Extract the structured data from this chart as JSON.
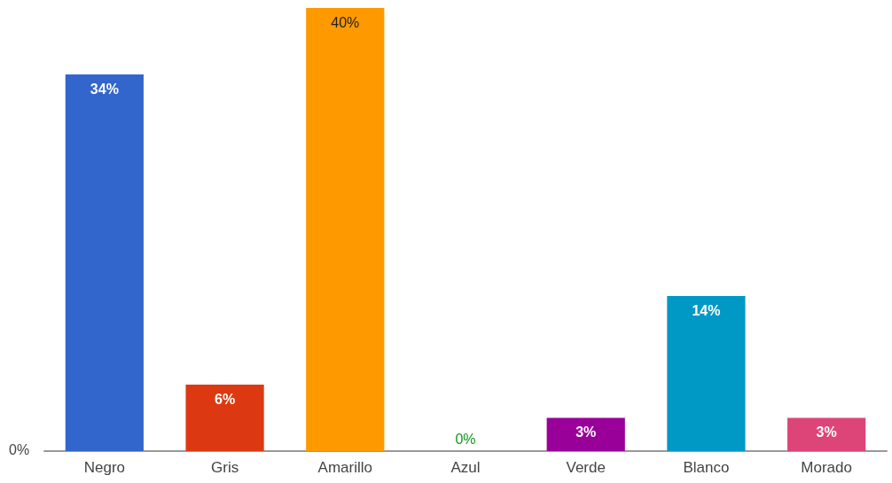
{
  "chart_data": {
    "type": "bar",
    "categories": [
      "Negro",
      "Gris",
      "Amarillo",
      "Azul",
      "Verde",
      "Blanco",
      "Morado"
    ],
    "values": [
      34,
      6,
      40,
      0,
      3,
      14,
      3
    ],
    "colors": [
      "#3366cc",
      "#dc3912",
      "#ff9900",
      "#109618",
      "#990099",
      "#0099c6",
      "#dd4477"
    ],
    "value_labels": [
      "34%",
      "6%",
      "40%",
      "0%",
      "3%",
      "14%",
      "3%"
    ],
    "ylim": [
      0,
      40
    ],
    "annotations": [
      "0%"
    ]
  }
}
